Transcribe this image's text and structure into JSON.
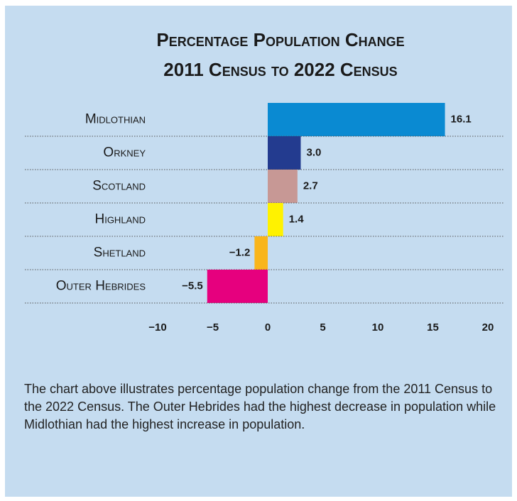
{
  "chart_data": {
    "type": "hbar",
    "title": [
      "Percentage Population Change",
      "2011 Census to 2022 Census"
    ],
    "categories": [
      "Midlothian",
      "Orkney",
      "Scotland",
      "Highland",
      "Shetland",
      "Outer Hebrides"
    ],
    "values": [
      16.1,
      3.0,
      2.7,
      1.4,
      -1.2,
      -5.5
    ],
    "value_labels": [
      "16.1",
      "3.0",
      "2.7",
      "1.4",
      "−1.2",
      "−5.5"
    ],
    "colors": [
      "#0a8ad2",
      "#233b8f",
      "#c79895",
      "#fff200",
      "#f9b51b",
      "#e6007e"
    ],
    "xlim": [
      -10,
      20
    ],
    "xticks": [
      {
        "value": -10,
        "label": "−10"
      },
      {
        "value": -5,
        "label": "−5"
      },
      0,
      5,
      10,
      15,
      20
    ],
    "grid": false
  },
  "caption": "The chart above illustrates percentage population change from the 2011 Census to the 2022 Census.  The Outer Hebrides had the highest decrease in population while Midlothian had the highest increase in population."
}
